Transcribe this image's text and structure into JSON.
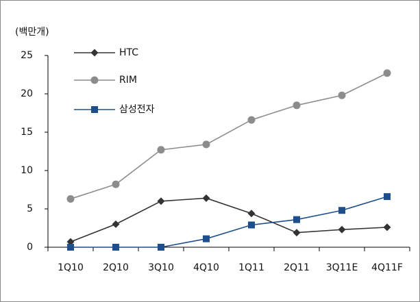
{
  "chart_data": {
    "type": "line",
    "y_label": "(백만개)",
    "categories": [
      "1Q10",
      "2Q10",
      "3Q10",
      "4Q10",
      "1Q11",
      "2Q11",
      "3Q11E",
      "4Q11F"
    ],
    "series": [
      {
        "name": "HTC",
        "color": "#333333",
        "marker": "diamond",
        "values": [
          0.7,
          3.0,
          6.0,
          6.4,
          4.4,
          1.9,
          2.3,
          2.6
        ]
      },
      {
        "name": "RIM",
        "color": "#8c8c8c",
        "marker": "circle",
        "values": [
          6.3,
          8.2,
          12.7,
          13.4,
          16.6,
          18.5,
          19.8,
          22.7
        ]
      },
      {
        "name": "삼성전자",
        "color": "#1f4e8c",
        "marker": "square",
        "values": [
          0,
          0,
          0,
          1.1,
          2.9,
          3.6,
          4.8,
          6.6
        ]
      }
    ],
    "ylim": [
      0,
      25
    ],
    "yticks": [
      0,
      5,
      10,
      15,
      20,
      25
    ],
    "grid": false,
    "legend": "upper left"
  }
}
